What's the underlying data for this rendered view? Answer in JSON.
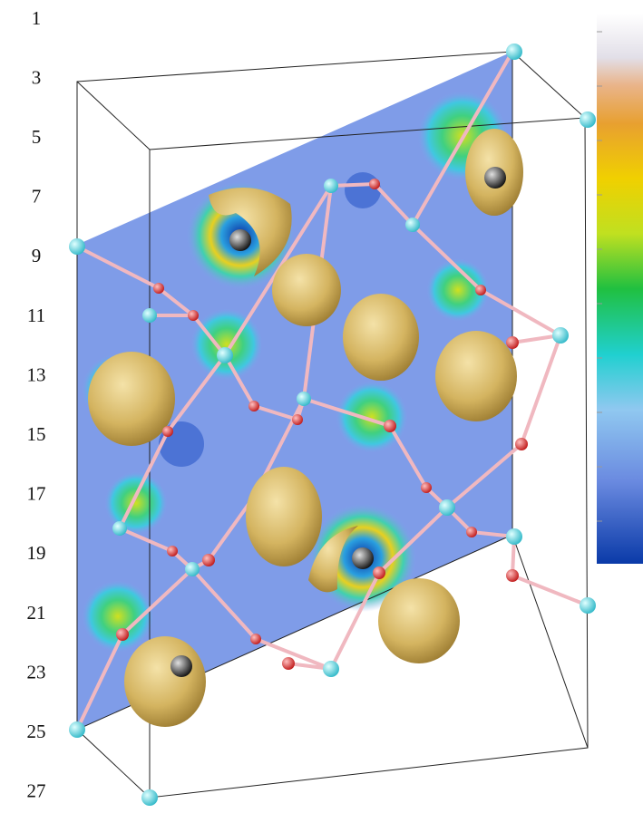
{
  "labels": [
    "1",
    "3",
    "5",
    "7",
    "9",
    "11",
    "13",
    "15",
    "17",
    "19",
    "21",
    "23",
    "25",
    "27"
  ]
}
